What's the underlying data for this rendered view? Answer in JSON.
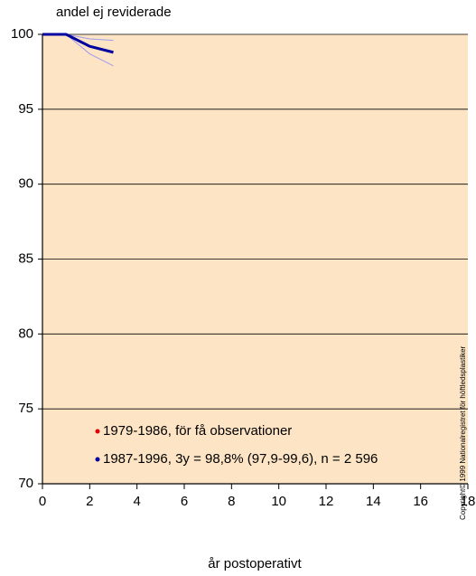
{
  "chart_data": {
    "type": "line",
    "y_label": "andel ej reviderade",
    "x_label": "år postoperativt",
    "copyright": "Copyright© 1999 Nationalregistret för höftledsplastiker",
    "x": [
      0,
      1,
      2,
      3
    ],
    "series": [
      {
        "name": "1979-1986, för få observationer",
        "color": "#e00000",
        "values": [
          null,
          null,
          null,
          null
        ]
      },
      {
        "name": "1987-1996,  3y =  98,8% (97,9-99,6), n = 2 596",
        "color": "#0000a0",
        "values": [
          100,
          100,
          99.2,
          98.8
        ],
        "upper": [
          100,
          100,
          99.7,
          99.6
        ],
        "lower": [
          100,
          100,
          98.7,
          97.9
        ],
        "band_color": "#9c9cf0"
      }
    ],
    "xlim": [
      0,
      18
    ],
    "ylim": [
      70,
      100
    ],
    "xticks": [
      0,
      2,
      4,
      6,
      8,
      10,
      12,
      14,
      16,
      18
    ],
    "yticks": [
      70,
      75,
      80,
      85,
      90,
      95,
      100
    ],
    "background": "#fde4c4",
    "grid": true
  }
}
